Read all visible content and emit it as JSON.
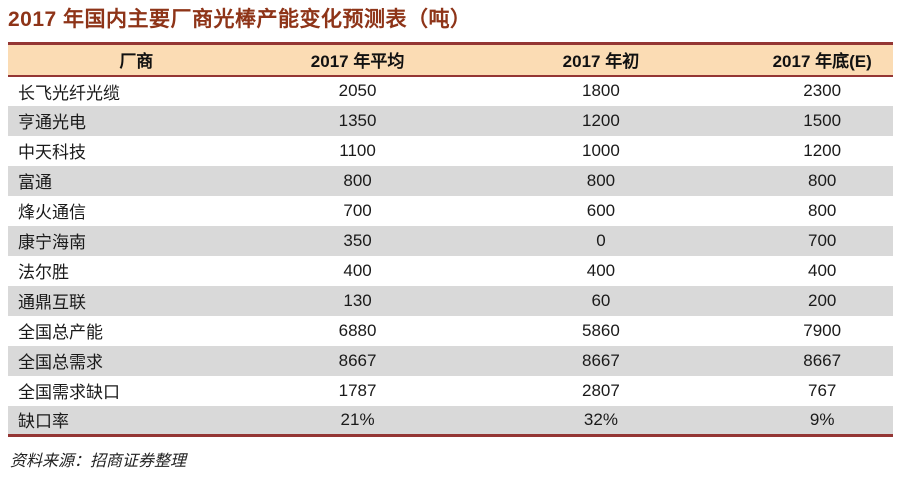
{
  "title": "2017 年国内主要厂商光棒产能变化预测表（吨）",
  "source_note": "资料来源：招商证券整理",
  "colors": {
    "accent": "#943634",
    "title_color": "#8E3418",
    "header_bg": "#FBDCB4",
    "row_alt": "#D9D9D9",
    "text_color": "#1A1A1A"
  },
  "chart_data": {
    "type": "table",
    "title": "2017 年国内主要厂商光棒产能变化预测表（吨）",
    "columns": [
      "厂商",
      "2017 年平均",
      "2017 年初",
      "2017 年底(E)"
    ],
    "rows": [
      [
        "长飞光纤光缆",
        "2050",
        "1800",
        "2300"
      ],
      [
        "亨通光电",
        "1350",
        "1200",
        "1500"
      ],
      [
        "中天科技",
        "1100",
        "1000",
        "1200"
      ],
      [
        "富通",
        "800",
        "800",
        "800"
      ],
      [
        "烽火通信",
        "700",
        "600",
        "800"
      ],
      [
        "康宁海南",
        "350",
        "0",
        "700"
      ],
      [
        "法尔胜",
        "400",
        "400",
        "400"
      ],
      [
        "通鼎互联",
        "130",
        "60",
        "200"
      ],
      [
        "全国总产能",
        "6880",
        "5860",
        "7900"
      ],
      [
        "全国总需求",
        "8667",
        "8667",
        "8667"
      ],
      [
        "全国需求缺口",
        "1787",
        "2807",
        "767"
      ],
      [
        "缺口率",
        "21%",
        "32%",
        "9%"
      ]
    ]
  }
}
